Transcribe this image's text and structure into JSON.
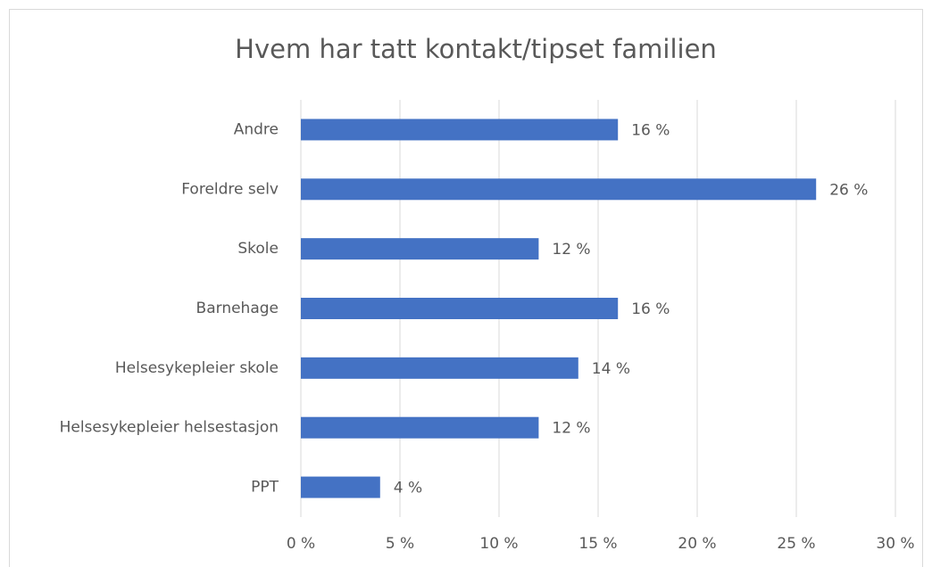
{
  "chart_data": {
    "type": "hbar",
    "title": "Hvem har tatt kontakt/tipset familien",
    "categories": [
      "Andre",
      "Foreldre selv",
      "Skole",
      "Barnehage",
      "Helsesykepleier skole",
      "Helsesykepleier helsestasjon",
      "PPT"
    ],
    "values": [
      16,
      26,
      12,
      16,
      14,
      12,
      4
    ],
    "value_labels": [
      "16 %",
      "26 %",
      "12 %",
      "16 %",
      "14 %",
      "12 %",
      "4 %"
    ],
    "color": "#4472c4",
    "xlim": [
      0,
      30
    ],
    "xticks": [
      {
        "value": 0,
        "label": "0 %"
      },
      {
        "value": 5,
        "label": "5 %"
      },
      {
        "value": 10,
        "label": "10 %"
      },
      {
        "value": 15,
        "label": "15 %"
      },
      {
        "value": 20,
        "label": "20 %"
      },
      {
        "value": 25,
        "label": "25 %"
      },
      {
        "value": 30,
        "label": "30 %"
      }
    ],
    "grid": true
  }
}
